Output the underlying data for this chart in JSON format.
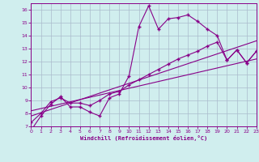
{
  "xlabel": "Windchill (Refroidissement éolien,°C)",
  "bg_color": "#d0eeee",
  "line_color": "#880088",
  "grid_color": "#aabbcc",
  "xlim": [
    0,
    23
  ],
  "ylim": [
    7,
    16.5
  ],
  "xticks": [
    0,
    1,
    2,
    3,
    4,
    5,
    6,
    7,
    8,
    9,
    10,
    11,
    12,
    13,
    14,
    15,
    16,
    17,
    18,
    19,
    20,
    21,
    22,
    23
  ],
  "yticks": [
    7,
    8,
    9,
    10,
    11,
    12,
    13,
    14,
    15,
    16
  ],
  "line1_x": [
    0,
    1,
    2,
    3,
    4,
    5,
    6,
    7,
    8,
    9,
    10,
    11,
    12,
    13,
    14,
    15,
    16,
    17,
    18,
    19,
    20,
    21,
    22,
    23
  ],
  "line1_y": [
    6.7,
    7.8,
    8.7,
    9.3,
    8.5,
    8.5,
    8.1,
    7.8,
    9.2,
    9.5,
    10.9,
    14.7,
    16.3,
    14.5,
    15.3,
    15.4,
    15.6,
    15.1,
    14.5,
    14.0,
    12.1,
    12.9,
    11.9,
    12.8
  ],
  "line2_x": [
    0,
    1,
    2,
    3,
    4,
    5,
    6,
    7,
    8,
    9,
    10,
    11,
    12,
    13,
    14,
    15,
    16,
    17,
    18,
    19,
    20,
    21,
    22,
    23
  ],
  "line2_y": [
    7.3,
    8.0,
    8.9,
    9.2,
    8.8,
    8.8,
    8.6,
    9.0,
    9.5,
    9.7,
    10.2,
    10.6,
    11.0,
    11.4,
    11.8,
    12.2,
    12.5,
    12.8,
    13.2,
    13.5,
    12.1,
    12.9,
    11.9,
    12.8
  ],
  "line3_x": [
    0,
    23
  ],
  "line3_y": [
    7.8,
    13.6
  ],
  "line4_x": [
    0,
    23
  ],
  "line4_y": [
    8.2,
    12.2
  ]
}
